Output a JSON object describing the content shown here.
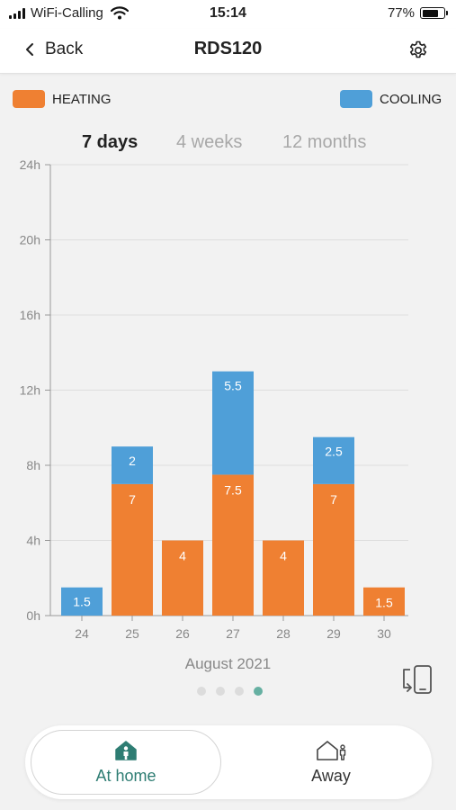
{
  "status": {
    "carrier": "WiFi-Calling",
    "time": "15:14",
    "battery": "77%",
    "battery_level": 0.77
  },
  "nav": {
    "back_label": "Back",
    "title": "RDS120",
    "settings_icon": "gear-icon"
  },
  "legend": {
    "heating": "HEATING",
    "cooling": "COOLING"
  },
  "periods": {
    "days": "7 days",
    "weeks": "4 weeks",
    "months": "12 months",
    "selected": "7 days"
  },
  "colors": {
    "heating": "#ef8032",
    "cooling": "#4f9fd8",
    "accent": "#2e7d73",
    "dot_active": "#66b0a2"
  },
  "chart_data": {
    "type": "bar",
    "stacked": true,
    "categories": [
      "24",
      "25",
      "26",
      "27",
      "28",
      "29",
      "30"
    ],
    "series": [
      {
        "name": "HEATING",
        "values": [
          0,
          7,
          4,
          7.5,
          4,
          7,
          1.5
        ]
      },
      {
        "name": "COOLING",
        "values": [
          1.5,
          2,
          0,
          5.5,
          0,
          2.5,
          0
        ]
      }
    ],
    "value_labels": {
      "HEATING": [
        "",
        "7",
        "4",
        "7.5",
        "4",
        "7",
        "1.5"
      ],
      "COOLING": [
        "1.5",
        "2",
        "",
        "5.5",
        "",
        "2.5",
        ""
      ]
    },
    "ylim": [
      0,
      24
    ],
    "yticks": [
      0,
      4,
      8,
      12,
      16,
      20,
      24
    ],
    "ytick_labels": [
      "0h",
      "4h",
      "8h",
      "12h",
      "16h",
      "20h",
      "24h"
    ],
    "grid": true,
    "xlabel": "August 2021",
    "legend_position": "top"
  },
  "pager": {
    "count": 4,
    "active": 3
  },
  "modes": {
    "home": "At home",
    "away": "Away",
    "active": "home"
  }
}
